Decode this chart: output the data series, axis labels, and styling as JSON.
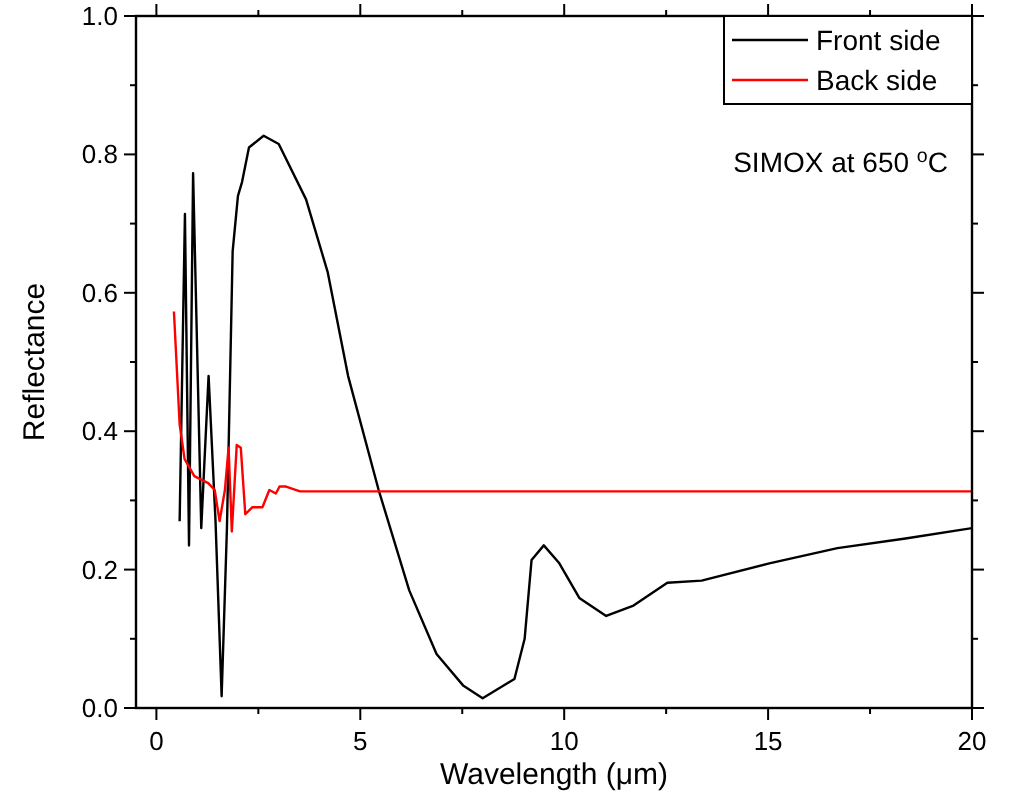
{
  "chart_data": {
    "type": "line",
    "xlabel": "Wavelength (μm)",
    "ylabel": "Reflectance",
    "xlim": [
      -0.5,
      20
    ],
    "xticks": [
      0,
      5,
      10,
      15,
      20
    ],
    "ylim": [
      0,
      1
    ],
    "yticks": [
      {
        "value": 0,
        "label": "0.0"
      },
      {
        "value": 0.2,
        "label": "0.2"
      },
      {
        "value": 0.4,
        "label": "0.4"
      },
      {
        "value": 0.6,
        "label": "0.6"
      },
      {
        "value": 0.8,
        "label": "0.8"
      },
      {
        "value": 1,
        "label": "1.0"
      }
    ],
    "grid": false,
    "legend": "top right",
    "marker": "none",
    "line_style": "solid",
    "annotations": [
      "SIMOX at 650 $^{o}$C"
    ],
    "series": [
      {
        "name": "Front side",
        "color": "#000000",
        "x": [
          0.57,
          0.7,
          0.8,
          0.9,
          1.1,
          1.28,
          1.45,
          1.6,
          1.73,
          1.87,
          2.0,
          2.1,
          2.27,
          2.63,
          3.0,
          3.67,
          4.2,
          4.7,
          5.45,
          6.2,
          6.87,
          7.53,
          8.0,
          8.78,
          9.03,
          9.2,
          9.5,
          9.87,
          10.37,
          11.03,
          11.7,
          12.53,
          13.37,
          15.03,
          16.7,
          18.37,
          20
        ],
        "values": [
          0.27,
          0.714,
          0.235,
          0.773,
          0.26,
          0.48,
          0.27,
          0.017,
          0.26,
          0.66,
          0.74,
          0.76,
          0.81,
          0.827,
          0.815,
          0.735,
          0.63,
          0.48,
          0.315,
          0.17,
          0.078,
          0.032,
          0.014,
          0.042,
          0.1,
          0.214,
          0.235,
          0.21,
          0.159,
          0.133,
          0.148,
          0.181,
          0.184,
          0.209,
          0.231,
          0.245,
          0.26
        ]
      },
      {
        "name": "Back side",
        "color": "#ff0000",
        "x": [
          0.43,
          0.57,
          0.69,
          0.93,
          1.27,
          1.43,
          1.55,
          1.68,
          1.77,
          1.85,
          1.97,
          2.07,
          2.18,
          2.35,
          2.6,
          2.77,
          2.93,
          3.02,
          3.18,
          3.52,
          4.77,
          20
        ],
        "values": [
          0.573,
          0.41,
          0.36,
          0.335,
          0.325,
          0.315,
          0.27,
          0.315,
          0.376,
          0.255,
          0.38,
          0.376,
          0.28,
          0.29,
          0.29,
          0.315,
          0.31,
          0.32,
          0.32,
          0.313,
          0.313,
          0.313
        ]
      }
    ]
  }
}
